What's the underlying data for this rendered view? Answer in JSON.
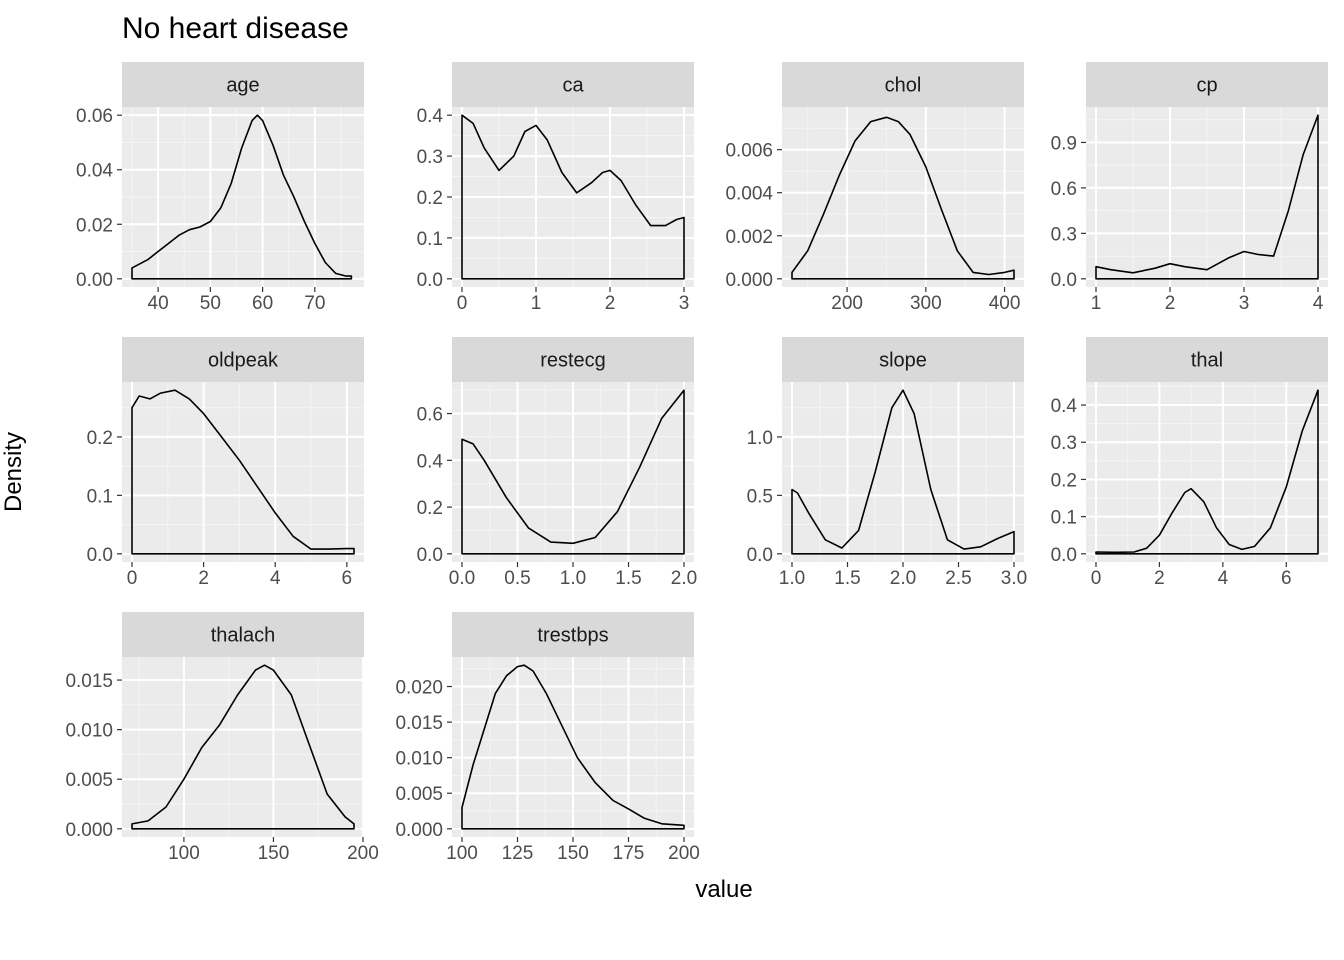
{
  "title": "No heart disease",
  "ylabel": "Density",
  "xlabel": "value",
  "chart_data": [
    {
      "type": "area",
      "strip": "age",
      "xlim": [
        35,
        77.5
      ],
      "ylim": [
        0,
        0.06
      ],
      "x_ticks": [
        {
          "v": 40,
          "label": "40"
        },
        {
          "v": 50,
          "label": "50"
        },
        {
          "v": 60,
          "label": "60"
        },
        {
          "v": 70,
          "label": "70"
        }
      ],
      "y_ticks": [
        {
          "v": 0,
          "label": "0.00"
        },
        {
          "v": 0.02,
          "label": "0.02"
        },
        {
          "v": 0.04,
          "label": "0.04"
        },
        {
          "v": 0.06,
          "label": "0.06"
        }
      ],
      "x": [
        35,
        38,
        40,
        42,
        44,
        46,
        48,
        50,
        52,
        54,
        56,
        58,
        59,
        60,
        62,
        64,
        66,
        68,
        70,
        72,
        74,
        76,
        77
      ],
      "y": [
        0.004,
        0.007,
        0.01,
        0.013,
        0.016,
        0.018,
        0.019,
        0.021,
        0.026,
        0.035,
        0.048,
        0.058,
        0.06,
        0.058,
        0.049,
        0.038,
        0.03,
        0.021,
        0.013,
        0.006,
        0.002,
        0.001,
        0.001
      ]
    },
    {
      "type": "area",
      "strip": "ca",
      "xlim": [
        0,
        3
      ],
      "ylim": [
        0,
        0.4
      ],
      "x_ticks": [
        {
          "v": 0,
          "label": "0"
        },
        {
          "v": 1,
          "label": "1"
        },
        {
          "v": 2,
          "label": "2"
        },
        {
          "v": 3,
          "label": "3"
        }
      ],
      "y_ticks": [
        {
          "v": 0,
          "label": "0.0"
        },
        {
          "v": 0.1,
          "label": "0.1"
        },
        {
          "v": 0.2,
          "label": "0.2"
        },
        {
          "v": 0.3,
          "label": "0.3"
        },
        {
          "v": 0.4,
          "label": "0.4"
        }
      ],
      "x": [
        0,
        0.15,
        0.3,
        0.5,
        0.7,
        0.85,
        1,
        1.15,
        1.35,
        1.55,
        1.75,
        1.9,
        2,
        2.15,
        2.35,
        2.55,
        2.75,
        2.9,
        3
      ],
      "y": [
        0.4,
        0.38,
        0.32,
        0.265,
        0.3,
        0.36,
        0.375,
        0.34,
        0.26,
        0.21,
        0.235,
        0.26,
        0.265,
        0.24,
        0.18,
        0.13,
        0.13,
        0.145,
        0.15
      ]
    },
    {
      "type": "area",
      "strip": "chol",
      "xlim": [
        130,
        412
      ],
      "ylim": [
        0,
        0.0076
      ],
      "x_ticks": [
        {
          "v": 200,
          "label": "200"
        },
        {
          "v": 300,
          "label": "300"
        },
        {
          "v": 400,
          "label": "400"
        }
      ],
      "y_ticks": [
        {
          "v": 0,
          "label": "0.000"
        },
        {
          "v": 0.002,
          "label": "0.002"
        },
        {
          "v": 0.004,
          "label": "0.004"
        },
        {
          "v": 0.006,
          "label": "0.006"
        }
      ],
      "x": [
        130,
        150,
        170,
        190,
        210,
        230,
        250,
        265,
        280,
        300,
        320,
        340,
        360,
        380,
        400,
        412
      ],
      "y": [
        0.0003,
        0.0013,
        0.003,
        0.0048,
        0.0064,
        0.0073,
        0.0075,
        0.0073,
        0.0067,
        0.0052,
        0.0032,
        0.0013,
        0.0003,
        0.0002,
        0.0003,
        0.0004
      ]
    },
    {
      "type": "area",
      "strip": "cp",
      "xlim": [
        1,
        4
      ],
      "ylim": [
        0,
        1.08
      ],
      "x_ticks": [
        {
          "v": 1,
          "label": "1"
        },
        {
          "v": 2,
          "label": "2"
        },
        {
          "v": 3,
          "label": "3"
        },
        {
          "v": 4,
          "label": "4"
        }
      ],
      "y_ticks": [
        {
          "v": 0,
          "label": "0.0"
        },
        {
          "v": 0.3,
          "label": "0.3"
        },
        {
          "v": 0.6,
          "label": "0.6"
        },
        {
          "v": 0.9,
          "label": "0.9"
        }
      ],
      "x": [
        1,
        1.2,
        1.5,
        1.8,
        2,
        2.2,
        2.5,
        2.8,
        3,
        3.2,
        3.4,
        3.6,
        3.8,
        4
      ],
      "y": [
        0.08,
        0.06,
        0.04,
        0.07,
        0.1,
        0.08,
        0.06,
        0.14,
        0.18,
        0.16,
        0.15,
        0.45,
        0.82,
        1.08
      ]
    },
    {
      "type": "area",
      "strip": "oldpeak",
      "xlim": [
        0,
        6.2
      ],
      "ylim": [
        0,
        0.28
      ],
      "x_ticks": [
        {
          "v": 0,
          "label": "0"
        },
        {
          "v": 2,
          "label": "2"
        },
        {
          "v": 4,
          "label": "4"
        },
        {
          "v": 6,
          "label": "6"
        }
      ],
      "y_ticks": [
        {
          "v": 0,
          "label": "0.0"
        },
        {
          "v": 0.1,
          "label": "0.1"
        },
        {
          "v": 0.2,
          "label": "0.2"
        }
      ],
      "x": [
        0,
        0.2,
        0.5,
        0.8,
        1.2,
        1.6,
        2,
        2.5,
        3,
        3.5,
        4,
        4.5,
        5,
        5.5,
        6,
        6.2
      ],
      "y": [
        0.25,
        0.27,
        0.265,
        0.275,
        0.28,
        0.265,
        0.24,
        0.2,
        0.16,
        0.115,
        0.07,
        0.03,
        0.008,
        0.008,
        0.009,
        0.009
      ]
    },
    {
      "type": "area",
      "strip": "restecg",
      "xlim": [
        0,
        2
      ],
      "ylim": [
        0,
        0.7
      ],
      "x_ticks": [
        {
          "v": 0,
          "label": "0.0"
        },
        {
          "v": 0.5,
          "label": "0.5"
        },
        {
          "v": 1,
          "label": "1.0"
        },
        {
          "v": 1.5,
          "label": "1.5"
        },
        {
          "v": 2,
          "label": "2.0"
        }
      ],
      "y_ticks": [
        {
          "v": 0,
          "label": "0.0"
        },
        {
          "v": 0.2,
          "label": "0.2"
        },
        {
          "v": 0.4,
          "label": "0.4"
        },
        {
          "v": 0.6,
          "label": "0.6"
        }
      ],
      "x": [
        0,
        0.1,
        0.2,
        0.4,
        0.6,
        0.8,
        1,
        1.2,
        1.4,
        1.6,
        1.8,
        2
      ],
      "y": [
        0.49,
        0.47,
        0.4,
        0.24,
        0.11,
        0.05,
        0.045,
        0.07,
        0.18,
        0.37,
        0.58,
        0.7
      ]
    },
    {
      "type": "area",
      "strip": "slope",
      "xlim": [
        1,
        3
      ],
      "ylim": [
        0,
        1.4
      ],
      "x_ticks": [
        {
          "v": 1,
          "label": "1.0"
        },
        {
          "v": 1.5,
          "label": "1.5"
        },
        {
          "v": 2,
          "label": "2.0"
        },
        {
          "v": 2.5,
          "label": "2.5"
        },
        {
          "v": 3,
          "label": "3.0"
        }
      ],
      "y_ticks": [
        {
          "v": 0,
          "label": "0.0"
        },
        {
          "v": 0.5,
          "label": "0.5"
        },
        {
          "v": 1,
          "label": "1.0"
        }
      ],
      "x": [
        1,
        1.05,
        1.15,
        1.3,
        1.45,
        1.6,
        1.75,
        1.9,
        2,
        2.1,
        2.25,
        2.4,
        2.55,
        2.7,
        2.85,
        3
      ],
      "y": [
        0.55,
        0.52,
        0.35,
        0.12,
        0.05,
        0.2,
        0.7,
        1.25,
        1.4,
        1.2,
        0.55,
        0.12,
        0.04,
        0.06,
        0.13,
        0.19
      ]
    },
    {
      "type": "area",
      "strip": "thal",
      "xlim": [
        0,
        7
      ],
      "ylim": [
        0,
        0.44
      ],
      "x_ticks": [
        {
          "v": 0,
          "label": "0"
        },
        {
          "v": 2,
          "label": "2"
        },
        {
          "v": 4,
          "label": "4"
        },
        {
          "v": 6,
          "label": "6"
        }
      ],
      "y_ticks": [
        {
          "v": 0,
          "label": "0.0"
        },
        {
          "v": 0.1,
          "label": "0.1"
        },
        {
          "v": 0.2,
          "label": "0.2"
        },
        {
          "v": 0.3,
          "label": "0.3"
        },
        {
          "v": 0.4,
          "label": "0.4"
        }
      ],
      "x": [
        0,
        0.6,
        1.2,
        1.6,
        2,
        2.4,
        2.8,
        3,
        3.4,
        3.8,
        4.2,
        4.6,
        5,
        5.5,
        6,
        6.5,
        7
      ],
      "y": [
        0.005,
        0.004,
        0.005,
        0.015,
        0.05,
        0.11,
        0.165,
        0.175,
        0.14,
        0.07,
        0.025,
        0.012,
        0.02,
        0.07,
        0.18,
        0.33,
        0.44
      ]
    },
    {
      "type": "area",
      "strip": "thalach",
      "xlim": [
        71,
        195
      ],
      "ylim": [
        0,
        0.0165
      ],
      "x_ticks": [
        {
          "v": 100,
          "label": "100"
        },
        {
          "v": 150,
          "label": "150"
        },
        {
          "v": 200,
          "label": "200"
        }
      ],
      "y_ticks": [
        {
          "v": 0,
          "label": "0.000"
        },
        {
          "v": 0.005,
          "label": "0.005"
        },
        {
          "v": 0.01,
          "label": "0.010"
        },
        {
          "v": 0.015,
          "label": "0.015"
        }
      ],
      "x": [
        71,
        80,
        90,
        100,
        110,
        120,
        130,
        140,
        145,
        150,
        160,
        170,
        180,
        190,
        195
      ],
      "y": [
        0.0005,
        0.0008,
        0.0022,
        0.005,
        0.0082,
        0.0105,
        0.0135,
        0.016,
        0.0165,
        0.016,
        0.0135,
        0.0085,
        0.0035,
        0.0012,
        0.0005
      ]
    },
    {
      "type": "area",
      "strip": "trestbps",
      "xlim": [
        100,
        200
      ],
      "ylim": [
        0,
        0.023
      ],
      "x_ticks": [
        {
          "v": 100,
          "label": "100"
        },
        {
          "v": 125,
          "label": "125"
        },
        {
          "v": 150,
          "label": "150"
        },
        {
          "v": 175,
          "label": "175"
        },
        {
          "v": 200,
          "label": "200"
        }
      ],
      "y_ticks": [
        {
          "v": 0,
          "label": "0.000"
        },
        {
          "v": 0.005,
          "label": "0.005"
        },
        {
          "v": 0.01,
          "label": "0.010"
        },
        {
          "v": 0.015,
          "label": "0.015"
        },
        {
          "v": 0.02,
          "label": "0.020"
        }
      ],
      "x": [
        100,
        105,
        110,
        115,
        120,
        125,
        128,
        132,
        138,
        145,
        152,
        160,
        168,
        175,
        182,
        190,
        200
      ],
      "y": [
        0.003,
        0.009,
        0.014,
        0.019,
        0.0215,
        0.0228,
        0.023,
        0.0222,
        0.019,
        0.0145,
        0.01,
        0.0065,
        0.004,
        0.0028,
        0.0015,
        0.0007,
        0.0005
      ]
    }
  ]
}
